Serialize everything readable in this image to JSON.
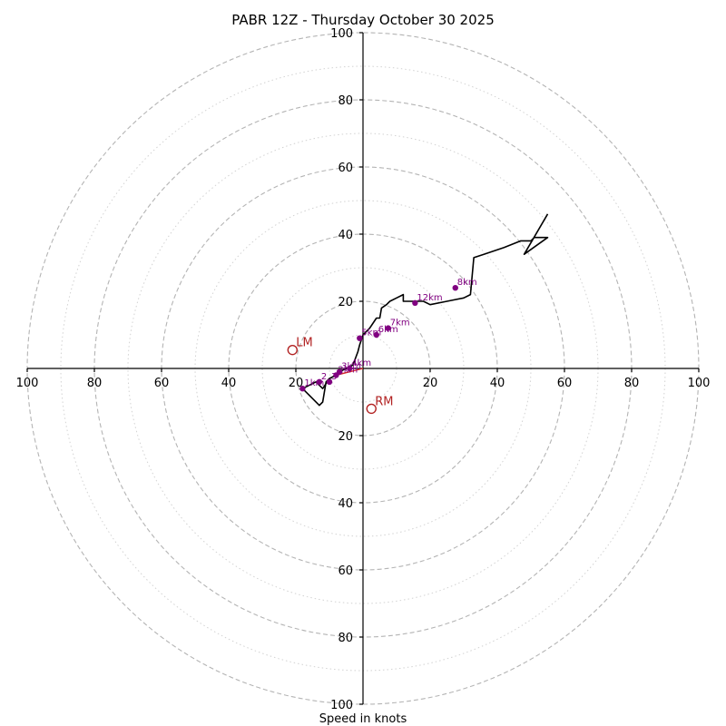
{
  "chart_data": {
    "type": "line",
    "chart_kind": "hodograph",
    "title": "PABR 12Z - Thursday October 30 2025",
    "xlabel": "Speed in knots",
    "units": "knots",
    "max_speed": 100,
    "ring_ticks": [
      "20",
      "40",
      "60",
      "80",
      "100"
    ],
    "x_tick_labels": [
      "100",
      "80",
      "60",
      "40",
      "20",
      "",
      "20",
      "40",
      "60",
      "80",
      "100"
    ],
    "y_tick_labels": [
      "100",
      "80",
      "60",
      "40",
      "20",
      "",
      "20",
      "40",
      "60",
      "80",
      "100"
    ],
    "colors": {
      "trace": "#000000",
      "height_points": "#800080",
      "storm_motion": "#b22222",
      "shear_vector": "#d62728",
      "rings": "#b4b4b4"
    },
    "series": [
      {
        "name": "wind profile",
        "u": [
          -10,
          -11,
          -12,
          -13,
          -16,
          -18,
          -14,
          -12,
          -10,
          -8,
          -7,
          -3,
          -1.5,
          -1,
          0,
          1,
          2,
          4,
          5,
          5.5,
          7,
          8,
          10,
          12,
          12,
          18,
          20,
          25,
          30,
          32,
          33,
          36,
          42,
          47,
          50,
          51,
          55,
          48,
          48,
          55
        ],
        "v": [
          -3,
          -4,
          -10,
          -11,
          -8,
          -6,
          -4,
          -6,
          -3,
          -2,
          -1,
          1,
          5,
          7,
          10,
          11,
          12,
          15,
          15,
          18,
          19,
          20,
          21,
          22,
          20,
          20,
          19,
          20,
          21,
          22,
          33,
          34,
          36,
          38,
          38,
          39,
          39,
          34,
          34,
          46
        ]
      }
    ],
    "height_markers": [
      {
        "label": "1km",
        "u": -18,
        "v": -6
      },
      {
        "label": "2",
        "u": -13,
        "v": -4
      },
      {
        "label": "3",
        "u": -10,
        "v": -4
      },
      {
        "label": "2km",
        "u": -8,
        "v": -2
      },
      {
        "label": "3km",
        "u": -7,
        "v": -1
      },
      {
        "label": "4km",
        "u": -4,
        "v": 0
      },
      {
        "label": "5km",
        "u": -1,
        "v": 9
      },
      {
        "label": "6km",
        "u": 4,
        "v": 10
      },
      {
        "label": "7km",
        "u": 7.5,
        "v": 12
      },
      {
        "label": "12km",
        "u": 15.5,
        "v": 19.5
      },
      {
        "label": "8km",
        "u": 27.5,
        "v": 24
      }
    ],
    "storm_motion": [
      {
        "label": "LM",
        "u": -21,
        "v": 5.5
      },
      {
        "label": "RM",
        "u": 2.5,
        "v": -12
      }
    ],
    "shear_vector": {
      "u1": -8,
      "v1": -2,
      "u2": 0,
      "v2": 0
    }
  }
}
